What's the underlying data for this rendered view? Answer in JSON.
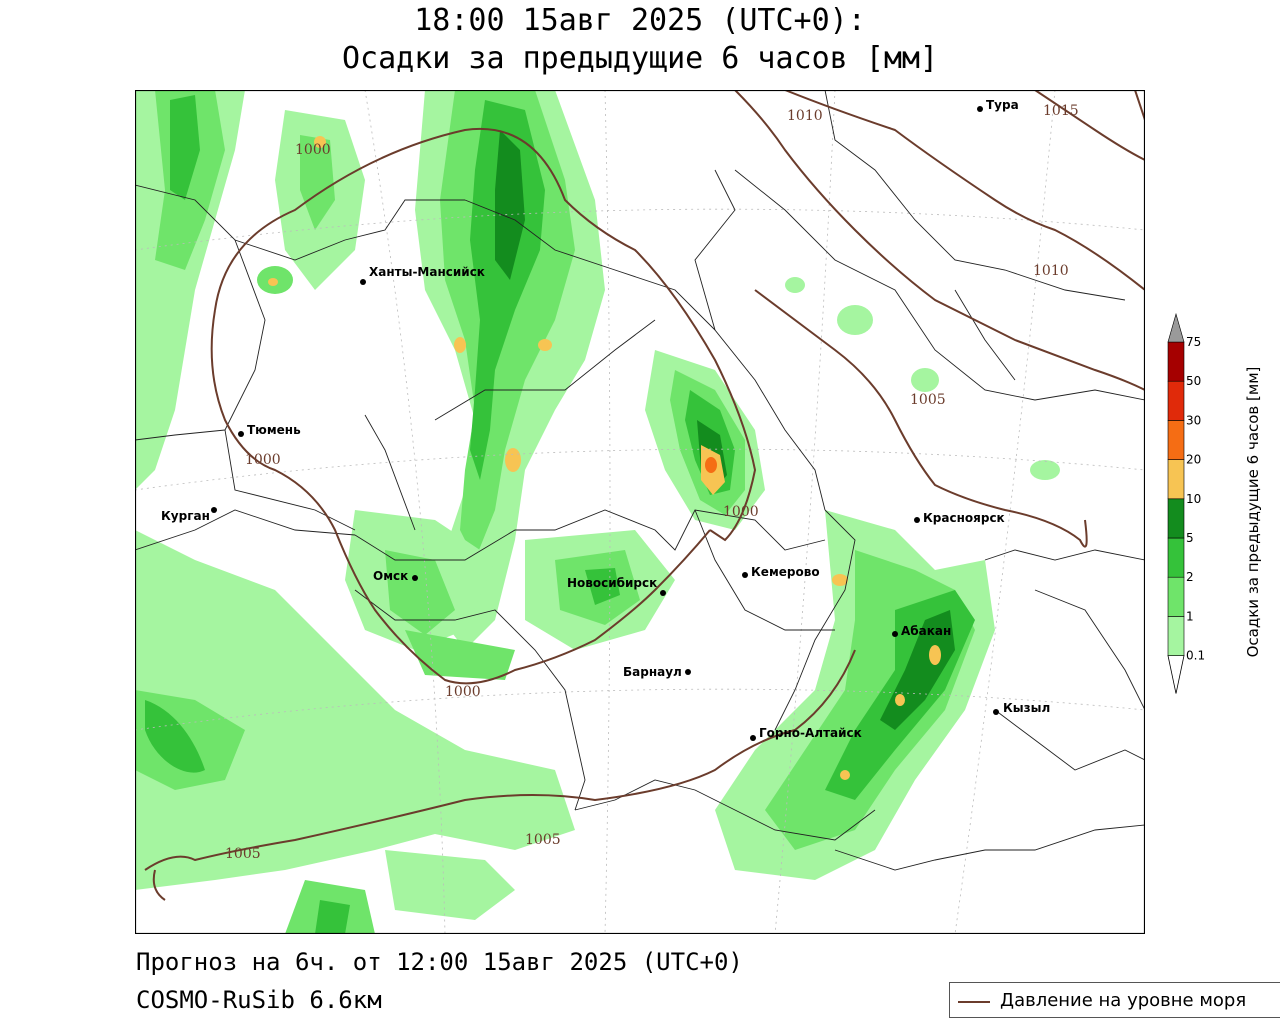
{
  "header": {
    "title_line1": "18:00 15авг 2025 (UTC+0):",
    "title_line2": "Осадки за предыдущие 6 часов [мм]"
  },
  "footer": {
    "forecast": "Прогноз на 6ч. от 12:00 15авг 2025 (UTC+0)",
    "model": "COSMO-RuSib 6.6км"
  },
  "legend": {
    "pressure_label": "Давление на уровне моря",
    "pressure_color": "#6b3c2c"
  },
  "colorbar": {
    "title": "Осадки за предыдущие 6 часов [мм]",
    "levels": [
      "0.1",
      "1",
      "2",
      "5",
      "10",
      "20",
      "30",
      "50",
      "75"
    ],
    "colors": [
      "#a5f5a0",
      "#6fe46a",
      "#35c23a",
      "#138c1e",
      "#f7c453",
      "#f56d14",
      "#e02a0a",
      "#a50000",
      "#9a9a9a"
    ]
  },
  "map": {
    "cities": [
      {
        "name": "Тура"
      },
      {
        "name": "Ханты-Мансийск"
      },
      {
        "name": "Тюмень"
      },
      {
        "name": "Курган"
      },
      {
        "name": "Омск"
      },
      {
        "name": "Новосибирск"
      },
      {
        "name": "Кемерово"
      },
      {
        "name": "Красноярск"
      },
      {
        "name": "Абакан"
      },
      {
        "name": "Барнаул"
      },
      {
        "name": "Горно-Алтайск"
      },
      {
        "name": "Кызыл"
      }
    ],
    "isobars": [
      "1010",
      "1015",
      "1000",
      "1010",
      "1005",
      "1000",
      "1000",
      "1000",
      "1005",
      "1005"
    ]
  }
}
